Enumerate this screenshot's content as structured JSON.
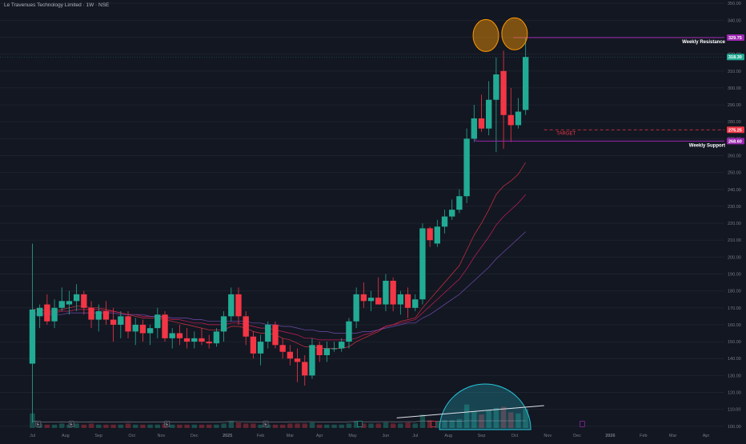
{
  "header": {
    "title": "Le Travenues Technology Limited · 1W · NSE"
  },
  "colors": {
    "background": "#131722",
    "bull": "#22ab94",
    "bear": "#f23645",
    "resistance_line": "#9c27b0",
    "support_line": "#9c27b0",
    "target_line": "#f23645",
    "ema_fast": "#f23645",
    "ema_mid": "#e91e63",
    "ema_slow": "#7e57c2",
    "volume_arc": "#26c6da",
    "highlight_circle": "#ff9800"
  },
  "chart_data": {
    "type": "candlestick",
    "y_axis": {
      "position": "right",
      "ticks": [
        "100.00",
        "110.00",
        "120.00",
        "130.00",
        "140.00",
        "150.00",
        "160.00",
        "170.00",
        "180.00",
        "190.00",
        "200.00",
        "210.00",
        "220.00",
        "230.00",
        "240.00",
        "250.00",
        "260.00",
        "270.00",
        "280.00",
        "290.00",
        "300.00",
        "310.00",
        "320.00",
        "330.00",
        "340.00",
        "350.00"
      ],
      "ylim": [
        98,
        352
      ]
    },
    "x_axis": {
      "ticks": [
        {
          "label": "Jul",
          "week": 0
        },
        {
          "label": "Aug",
          "week": 4.5
        },
        {
          "label": "Sep",
          "week": 9
        },
        {
          "label": "Oct",
          "week": 13.5
        },
        {
          "label": "Nov",
          "week": 17.5
        },
        {
          "label": "Dec",
          "week": 22
        },
        {
          "label": "2025",
          "week": 26.5
        },
        {
          "label": "Feb",
          "week": 31
        },
        {
          "label": "Mar",
          "week": 35
        },
        {
          "label": "Apr",
          "week": 39
        },
        {
          "label": "May",
          "week": 43.5
        },
        {
          "label": "Jun",
          "week": 48
        },
        {
          "label": "Jul",
          "week": 52
        },
        {
          "label": "Aug",
          "week": 56.5
        },
        {
          "label": "Sep",
          "week": 61
        },
        {
          "label": "Oct",
          "week": 65.5
        },
        {
          "label": "Nov",
          "week": 70
        },
        {
          "label": "Dec",
          "week": 74
        },
        {
          "label": "2026",
          "week": 78.5
        },
        {
          "label": "Feb",
          "week": 83
        },
        {
          "label": "Mar",
          "week": 87
        },
        {
          "label": "Apr",
          "week": 91.5
        }
      ]
    },
    "x_range_weeks": [
      -4.4,
      94
    ],
    "levels": [
      {
        "name": "Weekly Resistance",
        "value": 329.75,
        "badge": "329.75"
      },
      {
        "name": "TARGET",
        "value": 275.25,
        "badge": "275.25"
      },
      {
        "name": "Weekly Support",
        "value": 268.6,
        "badge": "268.60"
      }
    ],
    "last_price": {
      "value": 318.3,
      "badge": "318.30"
    },
    "candles": [
      {
        "o": 137,
        "h": 208,
        "l": 102,
        "c": 169
      },
      {
        "o": 165,
        "h": 172,
        "l": 158,
        "c": 170
      },
      {
        "o": 172,
        "h": 178,
        "l": 160,
        "c": 162
      },
      {
        "o": 162,
        "h": 175,
        "l": 158,
        "c": 170
      },
      {
        "o": 170,
        "h": 182,
        "l": 168,
        "c": 174
      },
      {
        "o": 172,
        "h": 180,
        "l": 166,
        "c": 174
      },
      {
        "o": 174,
        "h": 184,
        "l": 168,
        "c": 178
      },
      {
        "o": 178,
        "h": 180,
        "l": 166,
        "c": 170
      },
      {
        "o": 170,
        "h": 174,
        "l": 158,
        "c": 163
      },
      {
        "o": 163,
        "h": 172,
        "l": 156,
        "c": 168
      },
      {
        "o": 168,
        "h": 174,
        "l": 160,
        "c": 163
      },
      {
        "o": 163,
        "h": 170,
        "l": 150,
        "c": 160
      },
      {
        "o": 160,
        "h": 168,
        "l": 152,
        "c": 165
      },
      {
        "o": 165,
        "h": 168,
        "l": 152,
        "c": 156
      },
      {
        "o": 156,
        "h": 164,
        "l": 148,
        "c": 160
      },
      {
        "o": 160,
        "h": 163,
        "l": 150,
        "c": 155
      },
      {
        "o": 155,
        "h": 160,
        "l": 148,
        "c": 158
      },
      {
        "o": 158,
        "h": 170,
        "l": 152,
        "c": 166
      },
      {
        "o": 166,
        "h": 168,
        "l": 150,
        "c": 152
      },
      {
        "o": 152,
        "h": 158,
        "l": 146,
        "c": 155
      },
      {
        "o": 155,
        "h": 160,
        "l": 148,
        "c": 152
      },
      {
        "o": 152,
        "h": 158,
        "l": 146,
        "c": 150
      },
      {
        "o": 150,
        "h": 156,
        "l": 146,
        "c": 152
      },
      {
        "o": 152,
        "h": 158,
        "l": 148,
        "c": 150
      },
      {
        "o": 150,
        "h": 154,
        "l": 146,
        "c": 149
      },
      {
        "o": 149,
        "h": 158,
        "l": 147,
        "c": 156
      },
      {
        "o": 156,
        "h": 168,
        "l": 150,
        "c": 165
      },
      {
        "o": 165,
        "h": 182,
        "l": 162,
        "c": 178
      },
      {
        "o": 178,
        "h": 182,
        "l": 160,
        "c": 165
      },
      {
        "o": 165,
        "h": 168,
        "l": 148,
        "c": 153
      },
      {
        "o": 153,
        "h": 156,
        "l": 140,
        "c": 143
      },
      {
        "o": 143,
        "h": 154,
        "l": 136,
        "c": 150
      },
      {
        "o": 150,
        "h": 162,
        "l": 146,
        "c": 160
      },
      {
        "o": 160,
        "h": 162,
        "l": 146,
        "c": 148
      },
      {
        "o": 148,
        "h": 152,
        "l": 140,
        "c": 144
      },
      {
        "o": 144,
        "h": 148,
        "l": 136,
        "c": 140
      },
      {
        "o": 140,
        "h": 146,
        "l": 126,
        "c": 138
      },
      {
        "o": 138,
        "h": 142,
        "l": 124,
        "c": 130
      },
      {
        "o": 130,
        "h": 152,
        "l": 128,
        "c": 148
      },
      {
        "o": 148,
        "h": 150,
        "l": 138,
        "c": 142
      },
      {
        "o": 142,
        "h": 150,
        "l": 138,
        "c": 146
      },
      {
        "o": 146,
        "h": 150,
        "l": 144,
        "c": 146
      },
      {
        "o": 146,
        "h": 152,
        "l": 144,
        "c": 150
      },
      {
        "o": 150,
        "h": 164,
        "l": 146,
        "c": 162
      },
      {
        "o": 162,
        "h": 182,
        "l": 158,
        "c": 178
      },
      {
        "o": 178,
        "h": 185,
        "l": 170,
        "c": 174
      },
      {
        "o": 174,
        "h": 180,
        "l": 168,
        "c": 176
      },
      {
        "o": 176,
        "h": 188,
        "l": 172,
        "c": 172
      },
      {
        "o": 172,
        "h": 190,
        "l": 168,
        "c": 186
      },
      {
        "o": 186,
        "h": 188,
        "l": 168,
        "c": 172
      },
      {
        "o": 172,
        "h": 180,
        "l": 166,
        "c": 178
      },
      {
        "o": 178,
        "h": 182,
        "l": 164,
        "c": 170
      },
      {
        "o": 170,
        "h": 178,
        "l": 168,
        "c": 175
      },
      {
        "o": 175,
        "h": 220,
        "l": 172,
        "c": 217
      },
      {
        "o": 217,
        "h": 218,
        "l": 206,
        "c": 210
      },
      {
        "o": 208,
        "h": 222,
        "l": 206,
        "c": 218
      },
      {
        "o": 218,
        "h": 228,
        "l": 214,
        "c": 224
      },
      {
        "o": 224,
        "h": 234,
        "l": 222,
        "c": 228
      },
      {
        "o": 228,
        "h": 240,
        "l": 226,
        "c": 236
      },
      {
        "o": 236,
        "h": 276,
        "l": 232,
        "c": 270
      },
      {
        "o": 270,
        "h": 290,
        "l": 268,
        "c": 282
      },
      {
        "o": 282,
        "h": 296,
        "l": 274,
        "c": 276
      },
      {
        "o": 276,
        "h": 304,
        "l": 272,
        "c": 293
      },
      {
        "o": 293,
        "h": 318,
        "l": 262,
        "c": 308
      },
      {
        "o": 310,
        "h": 322,
        "l": 264,
        "c": 284
      },
      {
        "o": 284,
        "h": 300,
        "l": 268,
        "c": 278
      },
      {
        "o": 278,
        "h": 294,
        "l": 276,
        "c": 286
      },
      {
        "o": 287,
        "h": 330,
        "l": 284,
        "c": 318.3
      }
    ],
    "ema_fast": [
      169,
      169,
      168,
      168,
      169,
      170,
      171,
      171,
      170,
      170,
      169,
      168,
      167,
      166,
      165,
      164,
      164,
      164,
      163,
      162,
      161,
      160,
      159,
      158,
      157,
      157,
      157,
      159,
      159,
      158,
      156,
      155,
      155,
      154,
      152,
      151,
      149,
      147,
      147,
      146,
      146,
      146,
      146,
      147,
      150,
      152,
      154,
      156,
      159,
      160,
      162,
      163,
      164,
      170,
      175,
      180,
      185,
      190,
      195,
      204,
      213,
      220,
      228,
      237,
      242,
      245,
      249,
      256
    ],
    "ema_mid": [
      167,
      167,
      167,
      167,
      168,
      168,
      169,
      169,
      169,
      169,
      168,
      168,
      167,
      166,
      166,
      165,
      165,
      165,
      164,
      163,
      163,
      162,
      161,
      161,
      160,
      160,
      160,
      161,
      161,
      160,
      159,
      158,
      158,
      157,
      156,
      155,
      154,
      152,
      152,
      151,
      151,
      151,
      151,
      151,
      152,
      154,
      155,
      157,
      159,
      160,
      161,
      162,
      163,
      167,
      171,
      175,
      179,
      183,
      187,
      193,
      200,
      206,
      212,
      219,
      224,
      228,
      232,
      237
    ],
    "ema_slow": [
      166,
      166,
      166,
      166,
      166,
      167,
      167,
      167,
      167,
      167,
      167,
      167,
      166,
      166,
      166,
      166,
      165,
      165,
      165,
      164,
      164,
      164,
      163,
      163,
      162,
      162,
      162,
      162,
      162,
      162,
      161,
      161,
      160,
      160,
      159,
      159,
      158,
      157,
      157,
      156,
      156,
      155,
      155,
      155,
      155,
      156,
      156,
      157,
      158,
      159,
      160,
      161,
      161,
      164,
      166,
      169,
      172,
      175,
      178,
      182,
      186,
      190,
      194,
      199,
      203,
      207,
      211,
      215
    ],
    "volume": [
      1.3,
      0.4,
      0.3,
      0.3,
      0.4,
      0.3,
      0.4,
      0.3,
      0.4,
      0.3,
      0.3,
      0.3,
      0.3,
      0.4,
      0.3,
      0.3,
      0.3,
      0.3,
      0.4,
      0.3,
      0.3,
      0.3,
      0.3,
      0.3,
      0.3,
      0.3,
      0.4,
      0.6,
      0.5,
      0.4,
      0.4,
      0.3,
      0.3,
      0.3,
      0.3,
      0.4,
      0.4,
      0.4,
      0.5,
      0.3,
      0.3,
      0.3,
      0.3,
      0.4,
      0.6,
      0.4,
      0.4,
      0.4,
      0.5,
      0.4,
      0.4,
      0.5,
      0.4,
      1.2,
      0.7,
      0.6,
      0.7,
      0.7,
      0.8,
      2.1,
      1.5,
      1.2,
      1.6,
      1.8,
      1.9,
      1.4,
      1.3,
      1.7
    ],
    "event_markers": [
      {
        "week": 0.8,
        "label": "E",
        "color": "#787b86"
      },
      {
        "week": 5.3,
        "label": "E",
        "color": "#787b86"
      },
      {
        "week": 18.3,
        "label": "E",
        "color": "#787b86"
      },
      {
        "week": 31.7,
        "label": "E",
        "color": "#787b86"
      },
      {
        "week": 44.5,
        "label": "",
        "color": "#22ab94"
      },
      {
        "week": 54.5,
        "label": "",
        "color": "#f23645"
      },
      {
        "week": 74.7,
        "label": "",
        "color": "#9c27b0"
      }
    ]
  }
}
